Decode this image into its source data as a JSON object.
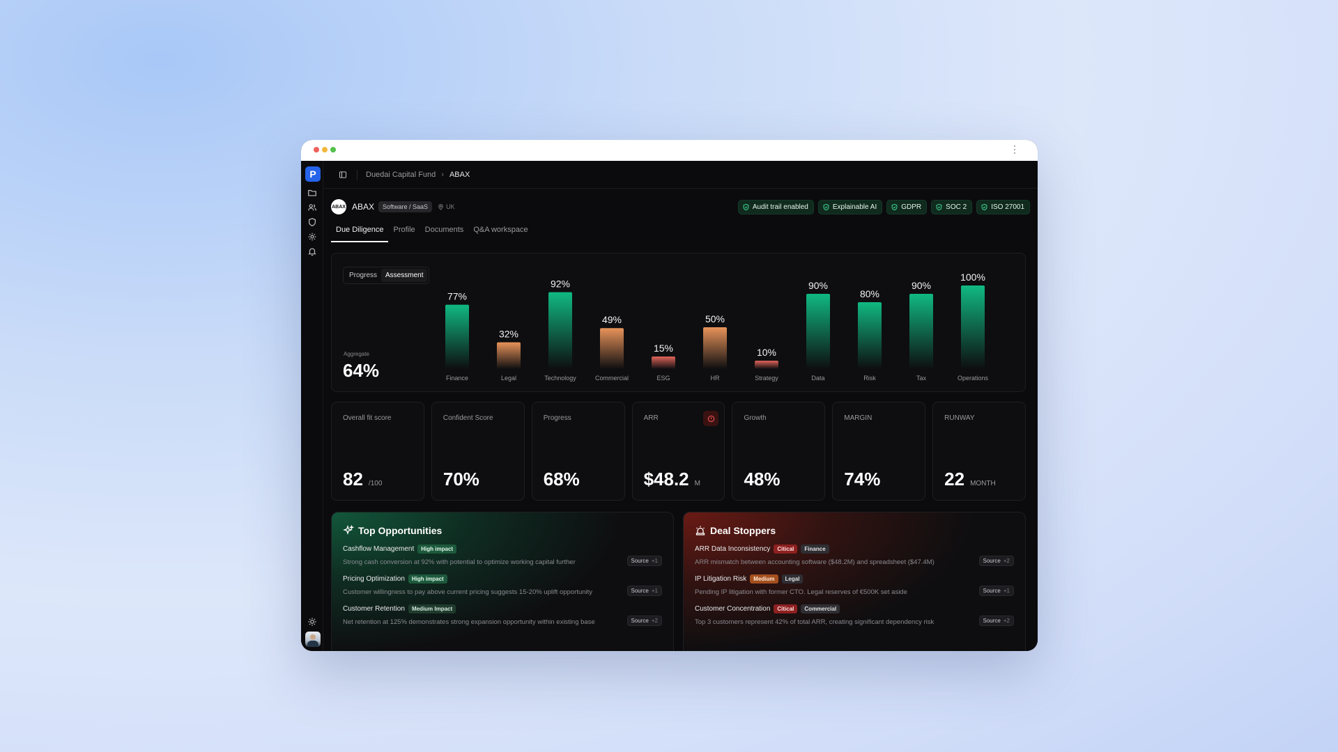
{
  "window": {
    "menu_icon": "kebab-icon"
  },
  "sidebar": {
    "logo": "P",
    "icons": [
      "folder-icon",
      "users-icon",
      "shield-icon",
      "gear-icon",
      "bell-icon"
    ],
    "bottom_icons": [
      "sun-icon"
    ]
  },
  "breadcrumb": {
    "parent": "Duedai Capital Fund",
    "separator": "›",
    "current": "ABAX"
  },
  "company": {
    "logo_text": "ABAX",
    "name": "ABAX",
    "tag": "Software / SaaS",
    "location": "UK",
    "badges": [
      "Audit trail enabled",
      "Explainable AI",
      "GDPR",
      "SOC 2",
      "ISO 27001"
    ]
  },
  "tabs": [
    "Due Diligence",
    "Profile",
    "Documents",
    "Q&A workspace"
  ],
  "toggle": {
    "progress": "Progress",
    "assessment": "Assessment"
  },
  "aggregate": {
    "label": "Aggregate",
    "value": "64%"
  },
  "chart_data": {
    "type": "bar",
    "categories": [
      "Finance",
      "Legal",
      "Technology",
      "Commercial",
      "ESG",
      "HR",
      "Strategy",
      "Data",
      "Risk",
      "Tax",
      "Operations"
    ],
    "values": [
      77,
      32,
      92,
      49,
      15,
      50,
      10,
      90,
      80,
      90,
      100
    ],
    "data_labels": [
      "77%",
      "32%",
      "92%",
      "49%",
      "15%",
      "50%",
      "10%",
      "90%",
      "80%",
      "90%",
      "100%"
    ],
    "colors": [
      "#10b981",
      "#e8935a",
      "#10b981",
      "#e8935a",
      "#e0645a",
      "#e8935a",
      "#e0645a",
      "#10b981",
      "#10b981",
      "#10b981",
      "#10b981"
    ],
    "ylim": [
      0,
      100
    ]
  },
  "metrics": [
    {
      "label": "Overall fit score",
      "value": "82",
      "unit": "/100"
    },
    {
      "label": "Confident Score",
      "value": "70%",
      "unit": ""
    },
    {
      "label": "Progress",
      "value": "68%",
      "unit": ""
    },
    {
      "label": "ARR",
      "value": "$48.2",
      "unit": "M"
    },
    {
      "label": "Growth",
      "value": "48%",
      "unit": ""
    },
    {
      "label": "MARGIN",
      "value": "74%",
      "unit": ""
    },
    {
      "label": "RUNWAY",
      "value": "22",
      "unit": "MONTH"
    }
  ],
  "opportunities": {
    "title": "Top Opportunities",
    "items": [
      {
        "name": "Cashflow Management",
        "tags": [
          "High impact"
        ],
        "desc": "Strong cash conversion at 92% with potential to optimize working capital further",
        "source": "Source",
        "count": "+1"
      },
      {
        "name": "Pricing Optimization",
        "tags": [
          "High impact"
        ],
        "desc": "Customer willingness to pay above current pricing suggests 15-20% uplift opportunity",
        "source": "Source",
        "count": "+1"
      },
      {
        "name": "Customer Retention",
        "tags": [
          "Medium Impact"
        ],
        "desc": "Net retention at 125% demonstrates strong expansion opportunity within existing base",
        "source": "Source",
        "count": "+2"
      }
    ]
  },
  "stoppers": {
    "title": "Deal Stoppers",
    "items": [
      {
        "name": "ARR Data Inconsistency",
        "tags": [
          "Citical",
          "Finance"
        ],
        "desc": "ARR mismatch between accounting software ($48.2M) and spreadsheet ($47.4M)",
        "source": "Source",
        "count": "+2"
      },
      {
        "name": "IP Litigation Risk",
        "tags": [
          "Medium",
          "Legal"
        ],
        "desc": "Pending IP litigation with former CTO. Legal reserves of €500K set aside",
        "source": "Source",
        "count": "+1"
      },
      {
        "name": "Customer Concentration",
        "tags": [
          "Citical",
          "Commercial"
        ],
        "desc": "Top 3 customers represent 42% of total ARR, creating significant dependency risk",
        "source": "Source",
        "count": "+2"
      }
    ]
  }
}
